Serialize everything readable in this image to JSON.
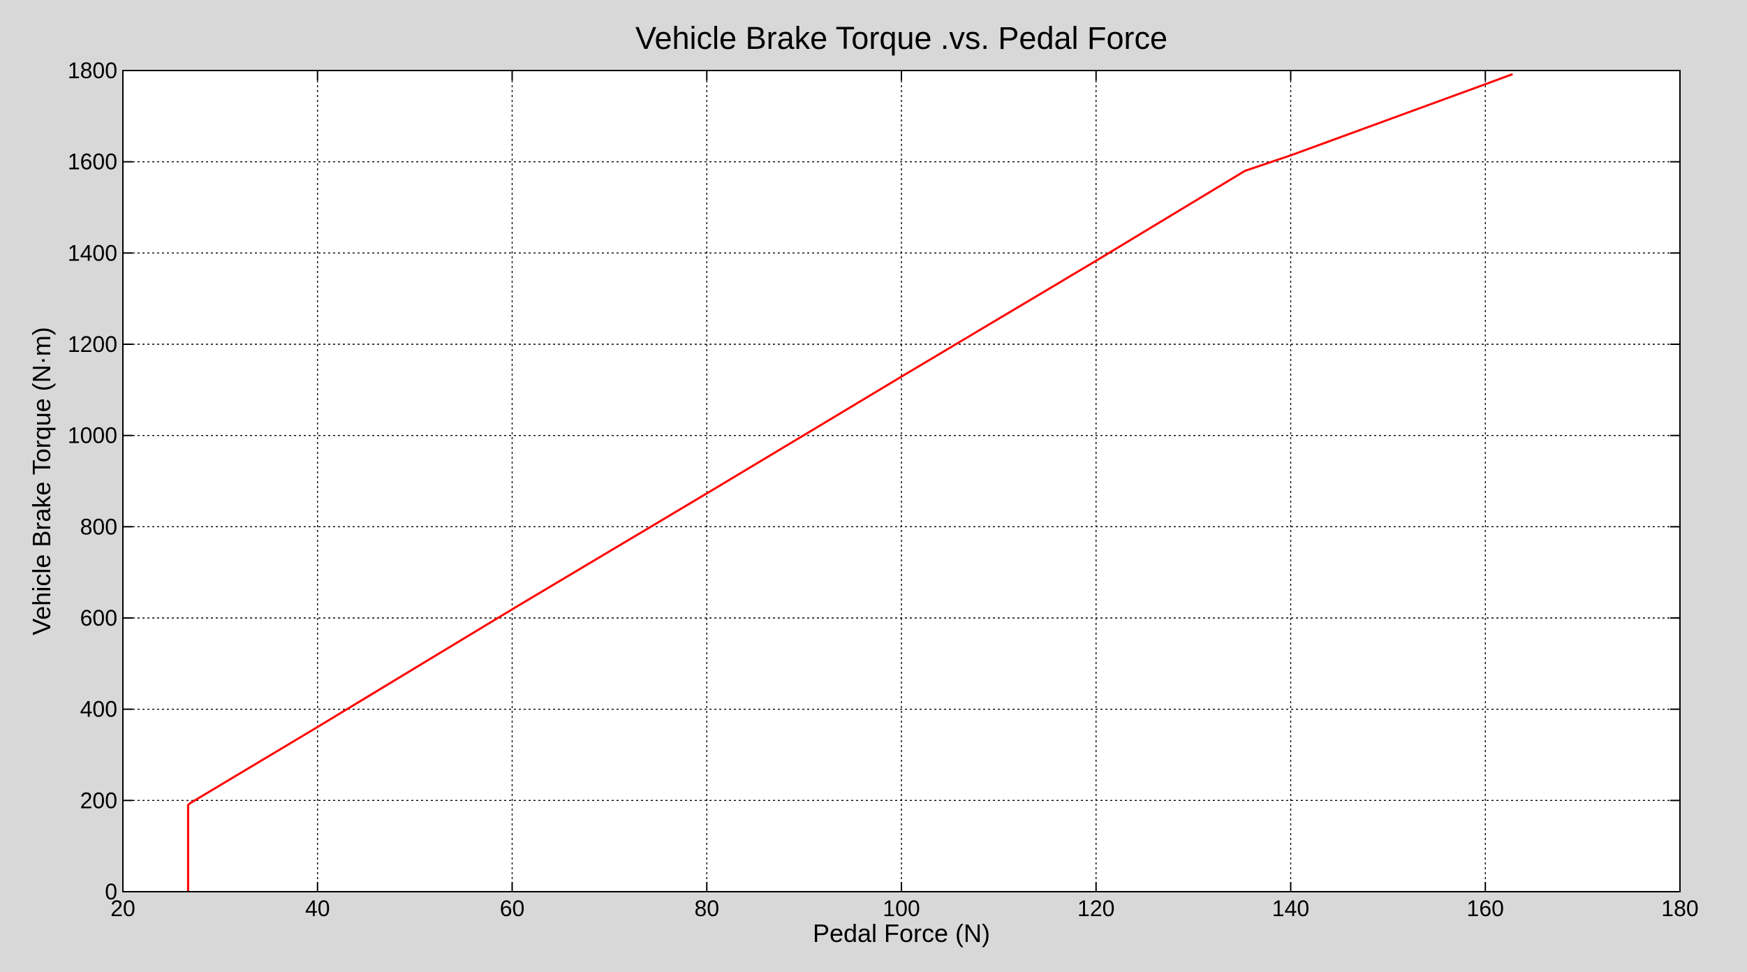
{
  "chart_data": {
    "type": "line",
    "title": "Vehicle Brake Torque .vs. Pedal Force",
    "xlabel": "Pedal Force (N)",
    "ylabel": "Vehicle Brake Torque (N·m)",
    "xlim": [
      20,
      180
    ],
    "ylim": [
      0,
      1800
    ],
    "x_ticks": [
      20,
      40,
      60,
      80,
      100,
      120,
      140,
      160,
      180
    ],
    "y_ticks": [
      0,
      200,
      400,
      600,
      800,
      1000,
      1200,
      1400,
      1600,
      1800
    ],
    "grid": true,
    "grid_style": "dotted",
    "series": [
      {
        "color": "#ff0000",
        "x": [
          26.7,
          26.7,
          26.9,
          40.0,
          60.0,
          80.0,
          100.0,
          120.0,
          135.3,
          140.0,
          160.0,
          162.8
        ],
        "y": [
          0,
          190,
          194,
          361,
          619,
          873,
          1129,
          1383,
          1580,
          1614,
          1770,
          1792
        ]
      }
    ]
  },
  "colors": {
    "figure_background": "#d8d8d8",
    "plot_background": "#ffffff",
    "axes": "#000000",
    "grid": "#000000"
  }
}
